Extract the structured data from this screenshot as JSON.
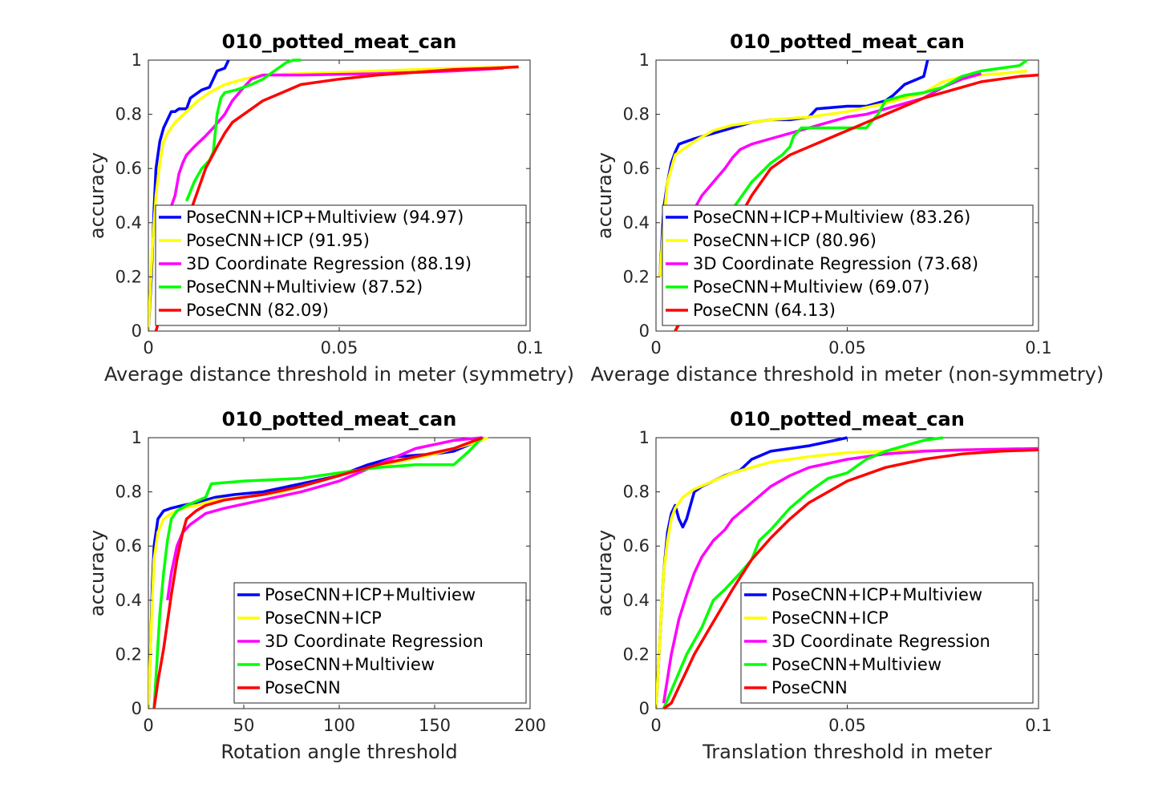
{
  "chart_data": [
    {
      "type": "line",
      "title": "010_potted_meat_can",
      "xlabel": "Average distance threshold in meter (symmetry)",
      "ylabel": "accuracy",
      "xlim": [
        0,
        0.1
      ],
      "ylim": [
        0,
        1
      ],
      "xticks": [
        "0",
        "0.05",
        "0.1"
      ],
      "yticks": [
        "0",
        "0.2",
        "0.4",
        "0.6",
        "0.8",
        "1"
      ],
      "legend_position": "bottom-left",
      "series": [
        {
          "name": "PoseCNN+ICP+Multiview (94.97)",
          "color": "#0000ff",
          "x": [
            0,
            0.0008,
            0.0015,
            0.002,
            0.003,
            0.004,
            0.005,
            0.006,
            0.007,
            0.008,
            0.01,
            0.011,
            0.012,
            0.014,
            0.016,
            0.017,
            0.018,
            0.02,
            0.021
          ],
          "y": [
            0,
            0.2,
            0.45,
            0.6,
            0.7,
            0.75,
            0.78,
            0.81,
            0.81,
            0.82,
            0.82,
            0.86,
            0.87,
            0.89,
            0.9,
            0.93,
            0.96,
            0.97,
            1.0
          ]
        },
        {
          "name": "PoseCNN+ICP (91.95)",
          "color": "#ffff00",
          "x": [
            0,
            0.001,
            0.002,
            0.003,
            0.004,
            0.005,
            0.007,
            0.01,
            0.013,
            0.016,
            0.02,
            0.025,
            0.03,
            0.04,
            0.06,
            0.08,
            0.097
          ],
          "y": [
            0,
            0.3,
            0.5,
            0.62,
            0.7,
            0.73,
            0.77,
            0.81,
            0.85,
            0.88,
            0.91,
            0.93,
            0.945,
            0.95,
            0.96,
            0.97,
            0.975
          ]
        },
        {
          "name": "3D Coordinate Regression (88.19)",
          "color": "#ff00ff",
          "x": [
            0.003,
            0.005,
            0.007,
            0.008,
            0.009,
            0.01,
            0.012,
            0.015,
            0.017,
            0.02,
            0.022,
            0.025,
            0.027,
            0.03,
            0.04,
            0.06,
            0.08,
            0.093
          ],
          "y": [
            0.35,
            0.42,
            0.5,
            0.58,
            0.62,
            0.65,
            0.68,
            0.72,
            0.75,
            0.8,
            0.85,
            0.9,
            0.93,
            0.945,
            0.945,
            0.95,
            0.96,
            0.97
          ]
        },
        {
          "name": "PoseCNN+Multiview (87.52)",
          "color": "#00ff00",
          "x": [
            0.01,
            0.012,
            0.014,
            0.016,
            0.017,
            0.018,
            0.019,
            0.02,
            0.023,
            0.025,
            0.027,
            0.03,
            0.033,
            0.036,
            0.038,
            0.04
          ],
          "y": [
            0.48,
            0.55,
            0.6,
            0.63,
            0.66,
            0.8,
            0.86,
            0.88,
            0.89,
            0.9,
            0.91,
            0.93,
            0.96,
            0.99,
            1.0,
            1.0
          ]
        },
        {
          "name": "PoseCNN (82.09)",
          "color": "#ff0000",
          "x": [
            0.002,
            0.01,
            0.013,
            0.015,
            0.018,
            0.02,
            0.022,
            0.025,
            0.03,
            0.035,
            0.04,
            0.05,
            0.06,
            0.07,
            0.08,
            0.09,
            0.097
          ],
          "y": [
            0,
            0.4,
            0.52,
            0.6,
            0.68,
            0.73,
            0.77,
            0.8,
            0.85,
            0.88,
            0.91,
            0.93,
            0.945,
            0.955,
            0.965,
            0.97,
            0.975
          ]
        }
      ]
    },
    {
      "type": "line",
      "title": "010_potted_meat_can",
      "xlabel": "Average distance threshold in meter (non-symmetry)",
      "ylabel": "accuracy",
      "xlim": [
        0,
        0.1
      ],
      "ylim": [
        0,
        1
      ],
      "xticks": [
        "0",
        "0.05",
        "0.1"
      ],
      "yticks": [
        "0",
        "0.2",
        "0.4",
        "0.6",
        "0.8",
        "1"
      ],
      "legend_position": "bottom-left",
      "series": [
        {
          "name": "PoseCNN+ICP+Multiview (83.26)",
          "color": "#0000ff",
          "x": [
            0.001,
            0.002,
            0.003,
            0.004,
            0.005,
            0.006,
            0.008,
            0.01,
            0.015,
            0.02,
            0.025,
            0.03,
            0.035,
            0.04,
            0.042,
            0.05,
            0.055,
            0.06,
            0.062,
            0.065,
            0.07,
            0.071
          ],
          "y": [
            0.2,
            0.45,
            0.55,
            0.62,
            0.66,
            0.69,
            0.7,
            0.71,
            0.73,
            0.75,
            0.77,
            0.78,
            0.78,
            0.79,
            0.82,
            0.83,
            0.83,
            0.85,
            0.87,
            0.91,
            0.94,
            1.0
          ]
        },
        {
          "name": "PoseCNN+ICP (80.96)",
          "color": "#ffff00",
          "x": [
            0.001,
            0.002,
            0.003,
            0.005,
            0.008,
            0.01,
            0.015,
            0.02,
            0.03,
            0.04,
            0.05,
            0.06,
            0.07,
            0.075,
            0.08,
            0.09,
            0.097
          ],
          "y": [
            0.2,
            0.4,
            0.55,
            0.65,
            0.68,
            0.7,
            0.74,
            0.76,
            0.78,
            0.79,
            0.81,
            0.84,
            0.88,
            0.92,
            0.94,
            0.95,
            0.96
          ]
        },
        {
          "name": "3D Coordinate Regression (73.68)",
          "color": "#ff00ff",
          "x": [
            0.01,
            0.012,
            0.015,
            0.018,
            0.02,
            0.022,
            0.025,
            0.03,
            0.035,
            0.04,
            0.045,
            0.05,
            0.055,
            0.06,
            0.065,
            0.07,
            0.075,
            0.08,
            0.085
          ],
          "y": [
            0.45,
            0.5,
            0.55,
            0.6,
            0.64,
            0.67,
            0.69,
            0.71,
            0.73,
            0.75,
            0.77,
            0.79,
            0.8,
            0.82,
            0.84,
            0.86,
            0.9,
            0.93,
            0.95
          ]
        },
        {
          "name": "PoseCNN+Multiview (69.07)",
          "color": "#00ff00",
          "x": [
            0.005,
            0.02,
            0.025,
            0.03,
            0.033,
            0.035,
            0.036,
            0.038,
            0.04,
            0.05,
            0.055,
            0.058,
            0.06,
            0.065,
            0.07,
            0.075,
            0.08,
            0.085,
            0.09,
            0.095,
            0.097
          ],
          "y": [
            0,
            0.45,
            0.55,
            0.62,
            0.65,
            0.68,
            0.72,
            0.75,
            0.75,
            0.75,
            0.75,
            0.8,
            0.85,
            0.87,
            0.88,
            0.9,
            0.94,
            0.96,
            0.97,
            0.98,
            1.0
          ]
        },
        {
          "name": "PoseCNN (64.13)",
          "color": "#ff0000",
          "x": [
            0.005,
            0.025,
            0.03,
            0.035,
            0.04,
            0.045,
            0.05,
            0.055,
            0.06,
            0.065,
            0.07,
            0.075,
            0.08,
            0.085,
            0.09,
            0.095,
            0.1
          ],
          "y": [
            0,
            0.5,
            0.6,
            0.65,
            0.68,
            0.71,
            0.74,
            0.77,
            0.8,
            0.83,
            0.86,
            0.88,
            0.9,
            0.92,
            0.93,
            0.94,
            0.945
          ]
        }
      ]
    },
    {
      "type": "line",
      "title": "010_potted_meat_can",
      "xlabel": "Rotation angle threshold",
      "ylabel": "accuracy",
      "xlim": [
        0,
        200
      ],
      "ylim": [
        0,
        1
      ],
      "xticks": [
        "0",
        "50",
        "100",
        "150",
        "200"
      ],
      "yticks": [
        "0",
        "0.2",
        "0.4",
        "0.6",
        "0.8",
        "1"
      ],
      "legend_position": "bottom-right",
      "series": [
        {
          "name": "PoseCNN+ICP+Multiview",
          "color": "#0000ff",
          "x": [
            0,
            1,
            2,
            3,
            5,
            8,
            12,
            18,
            25,
            35,
            45,
            60,
            80,
            100,
            115,
            130,
            150,
            160,
            170,
            175
          ],
          "y": [
            0,
            0.2,
            0.45,
            0.6,
            0.7,
            0.73,
            0.74,
            0.75,
            0.76,
            0.78,
            0.79,
            0.8,
            0.83,
            0.86,
            0.9,
            0.93,
            0.94,
            0.95,
            0.98,
            1.0
          ]
        },
        {
          "name": "PoseCNN+ICP",
          "color": "#ffff00",
          "x": [
            0,
            1,
            2,
            3,
            5,
            8,
            12,
            18,
            25,
            35,
            50,
            70,
            90,
            110,
            130,
            150,
            170,
            178
          ],
          "y": [
            0,
            0.2,
            0.4,
            0.55,
            0.65,
            0.7,
            0.72,
            0.74,
            0.75,
            0.77,
            0.78,
            0.8,
            0.84,
            0.88,
            0.91,
            0.94,
            0.98,
            1.0
          ]
        },
        {
          "name": "3D Coordinate Regression",
          "color": "#ff00ff",
          "x": [
            10,
            12,
            15,
            18,
            22,
            30,
            40,
            60,
            80,
            100,
            120,
            140,
            160,
            175
          ],
          "y": [
            0.4,
            0.5,
            0.6,
            0.65,
            0.68,
            0.72,
            0.74,
            0.77,
            0.8,
            0.84,
            0.9,
            0.96,
            0.99,
            1.0
          ]
        },
        {
          "name": "PoseCNN+Multiview",
          "color": "#00ff00",
          "x": [
            3,
            6,
            8,
            10,
            12,
            15,
            20,
            30,
            33,
            50,
            80,
            100,
            120,
            140,
            160,
            168,
            172,
            175
          ],
          "y": [
            0,
            0.35,
            0.5,
            0.62,
            0.7,
            0.73,
            0.75,
            0.78,
            0.83,
            0.84,
            0.85,
            0.87,
            0.89,
            0.9,
            0.9,
            0.95,
            0.98,
            1.0
          ]
        },
        {
          "name": "PoseCNN",
          "color": "#ff0000",
          "x": [
            3,
            5,
            8,
            10,
            12,
            15,
            18,
            20,
            25,
            30,
            40,
            60,
            80,
            100,
            120,
            140,
            160,
            175
          ],
          "y": [
            0,
            0.1,
            0.22,
            0.32,
            0.42,
            0.55,
            0.65,
            0.7,
            0.73,
            0.75,
            0.77,
            0.79,
            0.82,
            0.86,
            0.9,
            0.93,
            0.96,
            1.0
          ]
        }
      ]
    },
    {
      "type": "line",
      "title": "010_potted_meat_can",
      "xlabel": "Translation threshold in meter",
      "ylabel": "accuracy",
      "xlim": [
        0,
        0.1
      ],
      "ylim": [
        0,
        1
      ],
      "xticks": [
        "0",
        "0.05",
        "0.1"
      ],
      "yticks": [
        "0",
        "0.2",
        "0.4",
        "0.6",
        "0.8",
        "1"
      ],
      "legend_position": "bottom-right",
      "series": [
        {
          "name": "PoseCNN+ICP+Multiview",
          "color": "#0000ff",
          "x": [
            0,
            0.001,
            0.002,
            0.003,
            0.004,
            0.005,
            0.006,
            0.007,
            0.008,
            0.009,
            0.01,
            0.012,
            0.015,
            0.018,
            0.02,
            0.022,
            0.025,
            0.03,
            0.035,
            0.04,
            0.045,
            0.05
          ],
          "y": [
            0,
            0.25,
            0.5,
            0.65,
            0.72,
            0.75,
            0.7,
            0.67,
            0.7,
            0.75,
            0.8,
            0.82,
            0.84,
            0.86,
            0.87,
            0.88,
            0.92,
            0.95,
            0.96,
            0.97,
            0.985,
            1.0
          ]
        },
        {
          "name": "PoseCNN+ICP",
          "color": "#ffff00",
          "x": [
            0,
            0.001,
            0.002,
            0.003,
            0.004,
            0.005,
            0.007,
            0.01,
            0.015,
            0.02,
            0.03,
            0.04,
            0.05,
            0.06,
            0.08,
            0.1
          ],
          "y": [
            0,
            0.25,
            0.5,
            0.62,
            0.7,
            0.74,
            0.78,
            0.81,
            0.84,
            0.87,
            0.91,
            0.93,
            0.945,
            0.95,
            0.955,
            0.96
          ]
        },
        {
          "name": "3D Coordinate Regression",
          "color": "#ff00ff",
          "x": [
            0.002,
            0.004,
            0.006,
            0.008,
            0.01,
            0.012,
            0.015,
            0.018,
            0.02,
            0.025,
            0.03,
            0.035,
            0.04,
            0.05,
            0.06,
            0.07,
            0.08,
            0.1
          ],
          "y": [
            0.02,
            0.2,
            0.33,
            0.42,
            0.5,
            0.56,
            0.62,
            0.66,
            0.7,
            0.76,
            0.82,
            0.86,
            0.89,
            0.92,
            0.94,
            0.95,
            0.955,
            0.96
          ]
        },
        {
          "name": "PoseCNN+Multiview",
          "color": "#00ff00",
          "x": [
            0.002,
            0.005,
            0.008,
            0.01,
            0.012,
            0.015,
            0.018,
            0.02,
            0.022,
            0.025,
            0.027,
            0.03,
            0.035,
            0.04,
            0.045,
            0.05,
            0.055,
            0.06,
            0.065,
            0.07,
            0.075
          ],
          "y": [
            0,
            0.1,
            0.2,
            0.25,
            0.3,
            0.4,
            0.44,
            0.47,
            0.5,
            0.55,
            0.62,
            0.66,
            0.74,
            0.8,
            0.85,
            0.87,
            0.92,
            0.95,
            0.97,
            0.99,
            1.0
          ]
        },
        {
          "name": "PoseCNN",
          "color": "#ff0000",
          "x": [
            0.002,
            0.004,
            0.006,
            0.008,
            0.01,
            0.015,
            0.02,
            0.025,
            0.03,
            0.035,
            0.04,
            0.05,
            0.06,
            0.07,
            0.08,
            0.09,
            0.1
          ],
          "y": [
            0,
            0.02,
            0.08,
            0.14,
            0.2,
            0.32,
            0.44,
            0.55,
            0.63,
            0.7,
            0.76,
            0.84,
            0.89,
            0.92,
            0.94,
            0.95,
            0.955
          ]
        }
      ]
    }
  ]
}
